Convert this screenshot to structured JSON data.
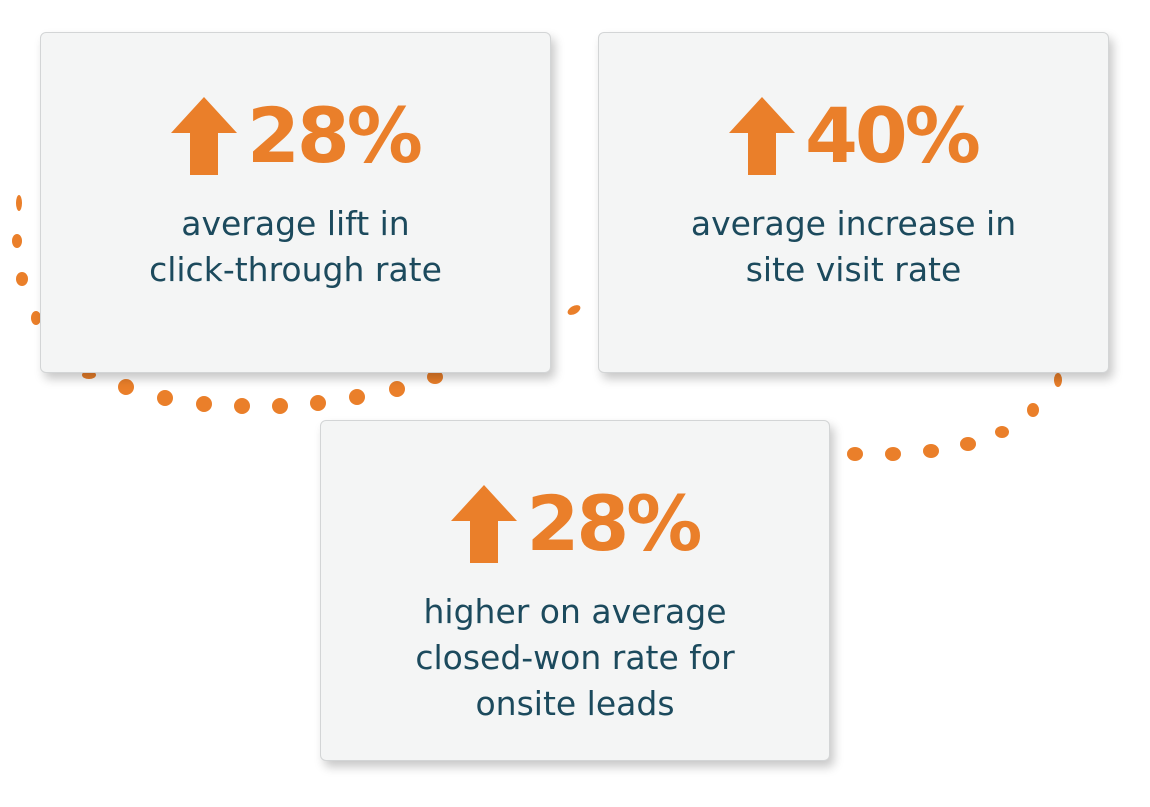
{
  "colors": {
    "accent": "#ea7f2a",
    "text": "#1c4a5d",
    "card_background": "#f4f5f5"
  },
  "stats": [
    {
      "icon": "arrow-up-icon",
      "value": "28%",
      "caption_lines": [
        "average lift in",
        "click-through rate"
      ]
    },
    {
      "icon": "arrow-up-icon",
      "value": "40%",
      "caption_lines": [
        "average increase in",
        "site visit rate"
      ]
    },
    {
      "icon": "arrow-up-icon",
      "value": "28%",
      "caption_lines": [
        "higher on average",
        "closed-won rate for",
        "onsite leads"
      ]
    }
  ]
}
